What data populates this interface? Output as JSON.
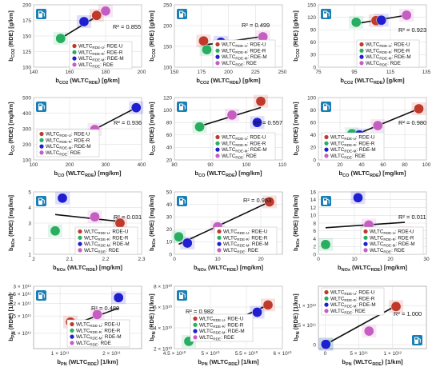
{
  "series_colors": [
    "#c0392b",
    "#27ae60",
    "#1f1fd1",
    "#c65ec2"
  ],
  "pump_icon_color": "#1a7fb5",
  "legend_labels": [
    "WLTC_RDE-U: RDE-U",
    "WLTC_RDE-R: RDE-R",
    "WLTC_RDE-M: RDE-M",
    "WLTC_RDE: RDE"
  ],
  "legend_text": [
    {
      "prefix": "WLTC",
      "sub": "RDE-U",
      "suffix": ": RDE-U"
    },
    {
      "prefix": "WLTC",
      "sub": "RDE-R",
      "suffix": ": RDE-R"
    },
    {
      "prefix": "WLTC",
      "sub": "RDE-M",
      "suffix": ": RDE-M"
    },
    {
      "prefix": "WLTC",
      "sub": "RDE",
      "suffix": ": RDE"
    }
  ],
  "chart_data": [
    {
      "type": "scatter",
      "ylabel": "b_CO2 (RDE) [g/km]",
      "xlabel": "b_CO2 (WLTC_RDE) [g/km]",
      "xlim": [
        140,
        200
      ],
      "ylim": [
        100,
        200
      ],
      "xticks": [
        "140",
        "160",
        "180",
        "200"
      ],
      "yticks": [
        "100",
        "125",
        "150",
        "175",
        "200"
      ],
      "points": [
        [
          175,
          183
        ],
        [
          155,
          146
        ],
        [
          168,
          173
        ],
        [
          180,
          190
        ]
      ],
      "fit": [
        [
          155,
          146
        ],
        [
          180,
          190
        ]
      ],
      "r2": "R² = 0.855"
    },
    {
      "type": "scatter",
      "ylabel": "b_CO2 (RDE) [g/km]",
      "xlabel": "b_CO2 (WLTC_RDE) [g/km]",
      "xlim": [
        150,
        250
      ],
      "ylim": [
        100,
        250
      ],
      "xticks": [
        "150",
        "175",
        "200",
        "225",
        "250"
      ],
      "yticks": [
        "100",
        "150",
        "200",
        "250"
      ],
      "points": [
        [
          177,
          163
        ],
        [
          180,
          142
        ],
        [
          193,
          160
        ],
        [
          232,
          173
        ]
      ],
      "fit": [
        [
          177,
          153
        ],
        [
          232,
          174
        ]
      ],
      "r2": "R² = 0.499"
    },
    {
      "type": "scatter",
      "ylabel": "b_CO2 (RDE) [g/km]",
      "xlabel": "b_CO2 (WLTC_RDE) [g/km]",
      "xlim": [
        75,
        135
      ],
      "ylim": [
        0,
        150
      ],
      "xticks": [
        "75",
        "95",
        "115",
        "135"
      ],
      "yticks": [
        "0",
        "30",
        "60",
        "90",
        "120",
        "150"
      ],
      "points": [
        [
          107,
          112
        ],
        [
          96,
          108
        ],
        [
          110,
          113
        ],
        [
          124,
          125
        ]
      ],
      "fit": [
        [
          95,
          104
        ],
        [
          124,
          125
        ]
      ],
      "r2": "R² = 0.923"
    },
    {
      "type": "scatter",
      "ylabel": "b_CO (RDE) [mg/km]",
      "xlabel": "b_CO (WLTC_RDE) [mg/km]",
      "xlim": [
        100,
        400
      ],
      "ylim": [
        100,
        500
      ],
      "xticks": [
        "100",
        "200",
        "300",
        "400"
      ],
      "yticks": [
        "100",
        "200",
        "300",
        "400",
        "500"
      ],
      "points": [
        [
          190,
          210
        ],
        [
          255,
          240
        ],
        [
          385,
          435
        ],
        [
          270,
          295
        ]
      ],
      "fit": [
        [
          190,
          200
        ],
        [
          385,
          435
        ]
      ],
      "r2": "R² = 0.936"
    },
    {
      "type": "scatter",
      "ylabel": "b_CO (RDE) [mg/km]",
      "xlabel": "b_CO (WLTC_RDE) [mg/km]",
      "xlim": [
        80,
        110
      ],
      "ylim": [
        20,
        120
      ],
      "xticks": [
        "80",
        "90",
        "100",
        "110"
      ],
      "yticks": [
        "20",
        "40",
        "60",
        "80",
        "100",
        "120"
      ],
      "points": [
        [
          104,
          114
        ],
        [
          87,
          73
        ],
        [
          103,
          80
        ],
        [
          96,
          92
        ]
      ],
      "fit": [
        [
          87,
          74
        ],
        [
          104,
          104
        ]
      ],
      "r2": "R² = 0.557"
    },
    {
      "type": "scatter",
      "ylabel": "b_CO (RDE) [mg/km]",
      "xlabel": "b_CO (WLTC_RDE) [mg/km]",
      "xlim": [
        0,
        100
      ],
      "ylim": [
        0,
        100
      ],
      "xticks": [
        "0",
        "20",
        "40",
        "60",
        "80",
        "100"
      ],
      "yticks": [
        "0",
        "20",
        "40",
        "60",
        "80",
        "100"
      ],
      "points": [
        [
          93,
          82
        ],
        [
          31,
          42
        ],
        [
          38,
          40
        ],
        [
          55,
          55
        ]
      ],
      "fit": [
        [
          31,
          38
        ],
        [
          93,
          82
        ]
      ],
      "r2": "R² = 0.980"
    },
    {
      "type": "scatter",
      "ylabel": "b_NOx (RDE) [mg/km]",
      "xlabel": "b_NOx (WLTC_RDE) [mg/km]",
      "xlim": [
        2,
        2.3
      ],
      "ylim": [
        1,
        5
      ],
      "xticks": [
        "2",
        "2.1",
        "2.2",
        "2.3"
      ],
      "yticks": [
        "1",
        "2",
        "3",
        "4",
        "5"
      ],
      "points": [
        [
          2.24,
          3.0
        ],
        [
          2.06,
          2.5
        ],
        [
          2.08,
          4.6
        ],
        [
          2.17,
          3.4
        ]
      ],
      "fit": [
        [
          2.06,
          3.55
        ],
        [
          2.24,
          3.1
        ]
      ],
      "r2": "R² = 0.031"
    },
    {
      "type": "scatter",
      "ylabel": "b_NOx (RDE) [mg/km]",
      "xlabel": "b_NOx (WLTC_RDE) [mg/km]",
      "xlim": [
        0,
        25
      ],
      "ylim": [
        0,
        50
      ],
      "xticks": [
        "0",
        "10",
        "20"
      ],
      "yticks": [
        "0",
        "10",
        "20",
        "30",
        "40",
        "50"
      ],
      "points": [
        [
          22,
          42
        ],
        [
          1,
          14
        ],
        [
          3,
          9
        ],
        [
          10,
          22
        ]
      ],
      "fit": [
        [
          1,
          8
        ],
        [
          22,
          42
        ]
      ],
      "r2": "R² = 0.953"
    },
    {
      "type": "scatter",
      "ylabel": "b_NOx (RDE) [mg/km]",
      "xlabel": "b_NOx (WLTC_RDE) [mg/km]",
      "xlim": [
        0,
        30
      ],
      "ylim": [
        0,
        16
      ],
      "xticks": [
        "0",
        "10",
        "20",
        "30"
      ],
      "yticks": [
        "0",
        "2",
        "4",
        "6",
        "8",
        "10",
        "12",
        "14",
        "16"
      ],
      "points": [
        [
          24,
          5.5
        ],
        [
          2,
          2.5
        ],
        [
          11,
          14.5
        ],
        [
          14,
          7.5
        ]
      ],
      "fit": [
        [
          2,
          6.8
        ],
        [
          24,
          8.2
        ]
      ],
      "r2": "R² = 0.011"
    },
    {
      "type": "scatter",
      "ylabel": "b_PN (RDE) [1/km]",
      "xlabel": "b_PN (WLTC_RDE) [1/km]",
      "xscale": "log",
      "yscale": "log",
      "xlim": [
        70000000000.0,
        300000000000.0
      ],
      "ylim": [
        70000000000.0,
        300000000000.0
      ],
      "xticks": [
        "1 × 10¹¹",
        "2 × 10¹¹"
      ],
      "yticks": [
        "1 × 10¹¹",
        "1.5 × 10¹¹",
        "2 × 10¹¹",
        "2.5 × 10¹¹",
        "3 × 10¹¹"
      ],
      "xtick_values": [
        100000000000.0,
        200000000000.0
      ],
      "ytick_values": [
        100000000000.0,
        150000000000.0,
        200000000000.0,
        250000000000.0,
        300000000000.0
      ],
      "points": [
        [
          115000000000.0,
          130000000000.0
        ],
        [
          175000000000.0,
          105000000000.0
        ],
        [
          220000000000.0,
          230000000000.0
        ],
        [
          165000000000.0,
          155000000000.0
        ]
      ],
      "fit": [
        [
          115000000000.0,
          120000000000.0
        ],
        [
          220000000000.0,
          180000000000.0
        ]
      ],
      "r2": "R² = 0.480"
    },
    {
      "type": "scatter",
      "ylabel": "b_PN (RDE) [1/km]",
      "xlabel": "b_PN (WLTC_RDE) [1/km]",
      "xlim": [
        45000000000.0,
        60000000000.0
      ],
      "ylim": [
        20000000000.0,
        80000000000.0
      ],
      "xticks": [
        "4.5 × 10¹⁰",
        "5 × 10¹⁰",
        "5.5 × 10¹⁰",
        "6 × 10¹⁰"
      ],
      "yticks": [
        "2 × 10¹⁰",
        "4 × 10¹⁰",
        "6 × 10¹⁰",
        "8 × 10¹⁰"
      ],
      "xtick_values": [
        45000000000.0,
        50000000000.0,
        55000000000.0,
        60000000000.0
      ],
      "ytick_values": [
        20000000000.0,
        40000000000.0,
        60000000000.0,
        80000000000.0
      ],
      "points": [
        [
          58000000000.0,
          62000000000.0
        ],
        [
          47000000000.0,
          27000000000.0
        ],
        [
          56500000000.0,
          55000000000.0
        ],
        [
          52000000000.0,
          47000000000.0
        ]
      ],
      "fit": [
        [
          47000000000.0,
          27000000000.0
        ],
        [
          58000000000.0,
          62000000000.0
        ]
      ],
      "r2": "R² = 0.982"
    },
    {
      "type": "scatter",
      "ylabel": "b_PN (RDE) [1/km]",
      "xlabel": "b_PN (WLTC_RDE) [1/km]",
      "xlim": [
        -100000000000.0,
        1500000000000.0
      ],
      "ylim": [
        -100000000000.0,
        1500000000000.0
      ],
      "xticks": [
        "0",
        "5 × 10¹¹",
        "1 × 10¹²"
      ],
      "yticks": [
        "0",
        "5 × 10¹¹",
        "1 × 10¹²"
      ],
      "xtick_values": [
        0,
        500000000000.0,
        1000000000000.0
      ],
      "ytick_values": [
        0,
        500000000000.0,
        1000000000000.0
      ],
      "points": [
        [
          1050000000000.0,
          980000000000.0
        ],
        [
          20000000000.0,
          20000000000.0
        ],
        [
          10000000000.0,
          10000000000.0
        ],
        [
          650000000000.0,
          350000000000.0
        ]
      ],
      "fit": [
        [
          0,
          0
        ],
        [
          1050000000000.0,
          1000000000000.0
        ]
      ],
      "r2": "R² = 1.000"
    }
  ]
}
